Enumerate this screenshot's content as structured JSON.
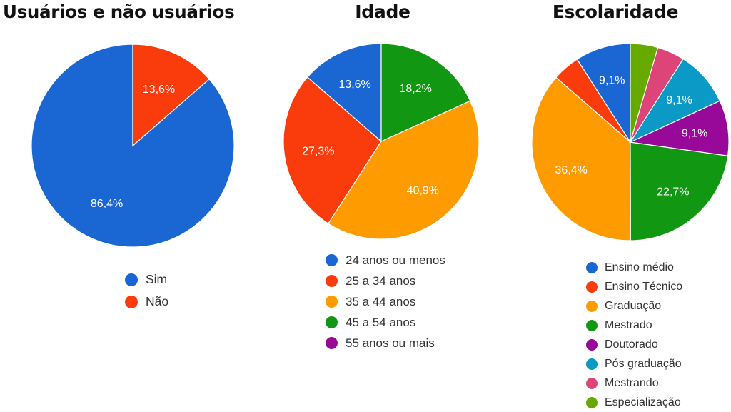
{
  "chart_data": [
    {
      "type": "pie",
      "title": "Usuários e não usuários",
      "slices": [
        {
          "name": "Sim",
          "value": 86.4,
          "label": "86,4%",
          "color": "#1a66d2"
        },
        {
          "name": "Não",
          "value": 13.6,
          "label": "13,6%",
          "color": "#fa3c0c"
        }
      ],
      "legend": [
        "Sim",
        "Não"
      ],
      "legend_position": "bottom"
    },
    {
      "type": "pie",
      "title": "Idade",
      "slices": [
        {
          "name": "24 anos ou menos",
          "value": 13.6,
          "label": "13,6%",
          "color": "#1a66d2"
        },
        {
          "name": "25 a 34 anos",
          "value": 27.3,
          "label": "27,3%",
          "color": "#fa3c0c"
        },
        {
          "name": "35 a 44 anos",
          "value": 40.9,
          "label": "40,9%",
          "color": "#fd9b00"
        },
        {
          "name": "45 a 54 anos",
          "value": 18.2,
          "label": "18,2%",
          "color": "#129712"
        },
        {
          "name": "55 anos ou mais",
          "value": 0,
          "label": "",
          "color": "#98099a"
        }
      ],
      "legend": [
        "24 anos ou menos",
        "25 a 34 anos",
        "35 a 44 anos",
        "45 a 54 anos",
        "55 anos ou mais"
      ],
      "legend_position": "bottom"
    },
    {
      "type": "pie",
      "title": "Escolaridade",
      "slices": [
        {
          "name": "Ensino médio",
          "value": 9.1,
          "label": "9,1%",
          "color": "#1a66d2"
        },
        {
          "name": "Ensino Técnico",
          "value": 4.5,
          "label": "",
          "color": "#fa3c0c"
        },
        {
          "name": "Graduação",
          "value": 36.4,
          "label": "36,4%",
          "color": "#fd9b00"
        },
        {
          "name": "Mestrado",
          "value": 22.7,
          "label": "22,7%",
          "color": "#129712"
        },
        {
          "name": "Doutorado",
          "value": 9.1,
          "label": "9,1%",
          "color": "#98099a"
        },
        {
          "name": "Pós graduação",
          "value": 9.1,
          "label": "9,1%",
          "color": "#0b99c6"
        },
        {
          "name": "Mestrando",
          "value": 4.5,
          "label": "",
          "color": "#dd4477"
        },
        {
          "name": "Especialização",
          "value": 4.5,
          "label": "",
          "color": "#66aa00"
        }
      ],
      "legend": [
        "Ensino médio",
        "Ensino Técnico",
        "Graduação",
        "Mestrado",
        "Doutorado",
        "Pós graduação",
        "Mestrando",
        "Especialização"
      ],
      "legend_position": "bottom"
    }
  ]
}
